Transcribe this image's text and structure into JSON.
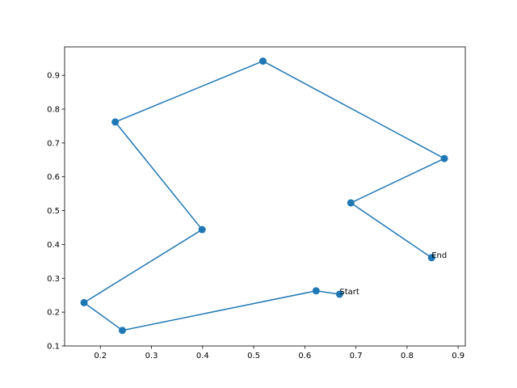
{
  "chart_data": {
    "type": "line",
    "title": "",
    "xlabel": "",
    "ylabel": "",
    "xlim": [
      0.13,
      0.914
    ],
    "ylim": [
      0.1,
      0.984
    ],
    "xticks": [
      0.2,
      0.3,
      0.4,
      0.5,
      0.6,
      0.7,
      0.8,
      0.9
    ],
    "yticks": [
      0.1,
      0.2,
      0.3,
      0.4,
      0.5,
      0.6,
      0.7,
      0.8,
      0.9
    ],
    "grid": false,
    "color": "#1f77b4",
    "marker": "circle",
    "series": [
      {
        "x": [
          0.668,
          0.622,
          0.243,
          0.168,
          0.399,
          0.229,
          0.518,
          0.873,
          0.69,
          0.848
        ],
        "y": [
          0.253,
          0.263,
          0.146,
          0.228,
          0.444,
          0.762,
          0.942,
          0.654,
          0.523,
          0.361
        ]
      }
    ],
    "annotations": [
      {
        "text": "Start",
        "x": 0.668,
        "y": 0.253
      },
      {
        "text": "End",
        "x": 0.848,
        "y": 0.361
      }
    ]
  }
}
